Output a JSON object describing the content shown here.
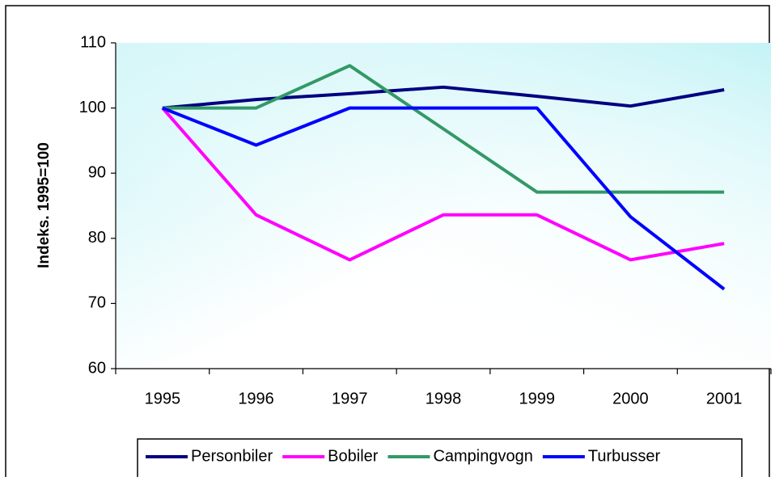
{
  "chart_data": {
    "type": "line",
    "y_label": "Indeks. 1995=100",
    "categories": [
      "1995",
      "1996",
      "1997",
      "1998",
      "1999",
      "2000",
      "2001"
    ],
    "series": [
      {
        "name": "Personbiler",
        "color": "#000080",
        "values": [
          100,
          101.3,
          102.2,
          103.2,
          101.8,
          100.3,
          102.8
        ]
      },
      {
        "name": "Bobiler",
        "color": "#ff00ff",
        "values": [
          100,
          83.6,
          76.7,
          83.6,
          83.6,
          76.7,
          79.2
        ]
      },
      {
        "name": "Campingvogn",
        "color": "#339966",
        "values": [
          100,
          100,
          106.5,
          96.8,
          87.1,
          87.1,
          87.1
        ]
      },
      {
        "name": "Turbusser",
        "color": "#0000ff",
        "values": [
          100,
          94.3,
          100,
          100,
          100,
          83.3,
          72.2
        ]
      }
    ],
    "ylim": [
      60,
      110
    ],
    "yticks": [
      60,
      70,
      80,
      90,
      100,
      110
    ],
    "grid": false,
    "legend": "bottom"
  }
}
